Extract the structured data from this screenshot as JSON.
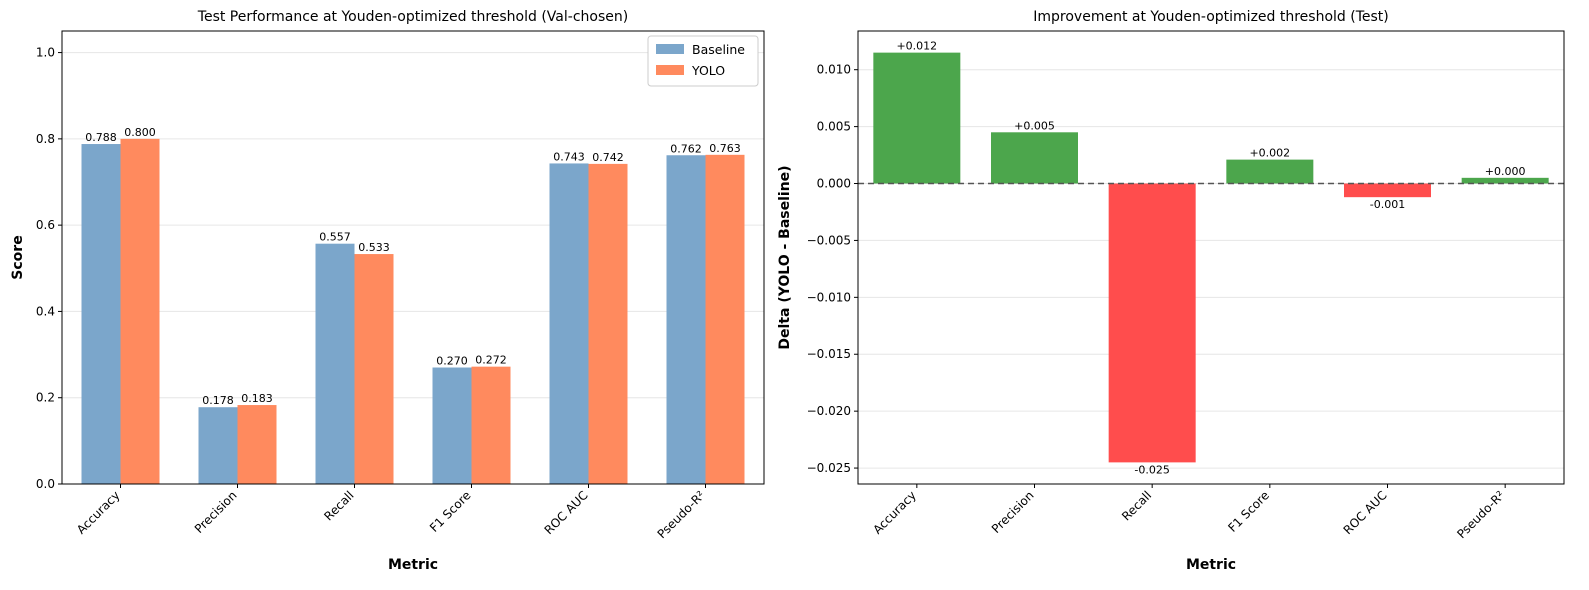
{
  "chart_data": [
    {
      "type": "bar",
      "title": "Test Performance at Youden-optimized threshold (Val-chosen)",
      "xlabel": "Metric",
      "ylabel": "Score",
      "categories": [
        "Accuracy",
        "Precision",
        "Recall",
        "F1 Score",
        "ROC AUC",
        "Pseudo-R²"
      ],
      "series": [
        {
          "name": "Baseline",
          "color": "#7BA6CB",
          "values": [
            0.788,
            0.178,
            0.557,
            0.27,
            0.743,
            0.762
          ],
          "labels": [
            "0.788",
            "0.178",
            "0.557",
            "0.270",
            "0.743",
            "0.762"
          ]
        },
        {
          "name": "YOLO",
          "color": "#FF8A5E",
          "values": [
            0.8,
            0.183,
            0.533,
            0.272,
            0.742,
            0.763
          ],
          "labels": [
            "0.800",
            "0.183",
            "0.533",
            "0.272",
            "0.742",
            "0.763"
          ]
        }
      ],
      "ylim": [
        0,
        1.05
      ],
      "yticks": [
        0.0,
        0.2,
        0.4,
        0.6,
        0.8,
        1.0
      ],
      "ytick_labels": [
        "0.0",
        "0.2",
        "0.4",
        "0.6",
        "0.8",
        "1.0"
      ],
      "grid": "y",
      "legend": "top-right"
    },
    {
      "type": "bar",
      "title": "Improvement at Youden-optimized threshold (Test)",
      "xlabel": "Metric",
      "ylabel": "Delta (YOLO - Baseline)",
      "categories": [
        "Accuracy",
        "Precision",
        "Recall",
        "F1 Score",
        "ROC AUC",
        "Pseudo-R²"
      ],
      "values": [
        0.0115,
        0.0045,
        -0.0245,
        0.0021,
        -0.0012,
        0.0005
      ],
      "labels": [
        "+0.012",
        "+0.005",
        "-0.025",
        "+0.002",
        "-0.001",
        "+0.000"
      ],
      "positive_color": "#4CA64C",
      "negative_color": "#FF4D4D",
      "ylim": [
        -0.0264,
        0.0134
      ],
      "yticks": [
        0.01,
        0.005,
        0.0,
        -0.005,
        -0.01,
        -0.015,
        -0.02,
        -0.025
      ],
      "ytick_labels": [
        "0.010",
        "0.005",
        "0.000",
        "−0.005",
        "−0.010",
        "−0.015",
        "−0.020",
        "−0.025"
      ],
      "zero_line": "dashed",
      "grid": "y"
    }
  ]
}
